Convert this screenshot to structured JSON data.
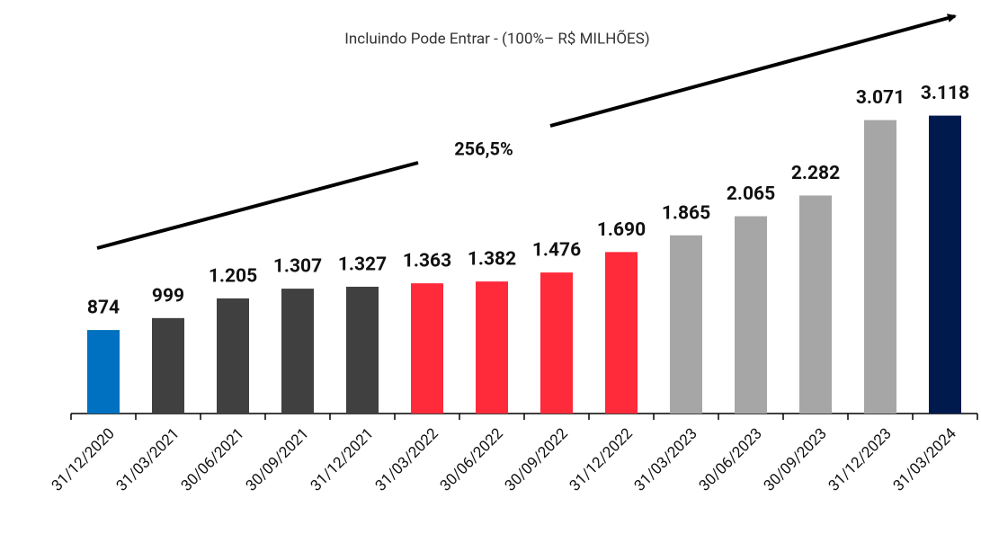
{
  "chart_data": {
    "type": "bar",
    "subtitle": "Incluindo Pode Entrar - (100%– R$ MILHÕES)",
    "annotation": "256,5%",
    "categories": [
      "31/12/2020",
      "31/03/2021",
      "30/06/2021",
      "30/09/2021",
      "31/12/2021",
      "31/03/2022",
      "30/06/2022",
      "30/09/2022",
      "31/12/2022",
      "31/03/2023",
      "30/06/2023",
      "30/09/2023",
      "31/12/2023",
      "31/03/2024"
    ],
    "values": [
      874,
      999,
      1205,
      1307,
      1327,
      1363,
      1382,
      1476,
      1690,
      1865,
      2065,
      2282,
      3071,
      3118
    ],
    "value_labels": [
      "874",
      "999",
      "1.205",
      "1.307",
      "1.327",
      "1.363",
      "1.382",
      "1.476",
      "1.690",
      "1.865",
      "2.065",
      "2.282",
      "3.071",
      "3.118"
    ],
    "colors": [
      "#0070c0",
      "#404040",
      "#404040",
      "#404040",
      "#404040",
      "#ff2a3a",
      "#ff2a3a",
      "#ff2a3a",
      "#ff2a3a",
      "#a6a6a6",
      "#a6a6a6",
      "#a6a6a6",
      "#a6a6a6",
      "#001a4d"
    ],
    "ylim": [
      0,
      3500
    ]
  }
}
